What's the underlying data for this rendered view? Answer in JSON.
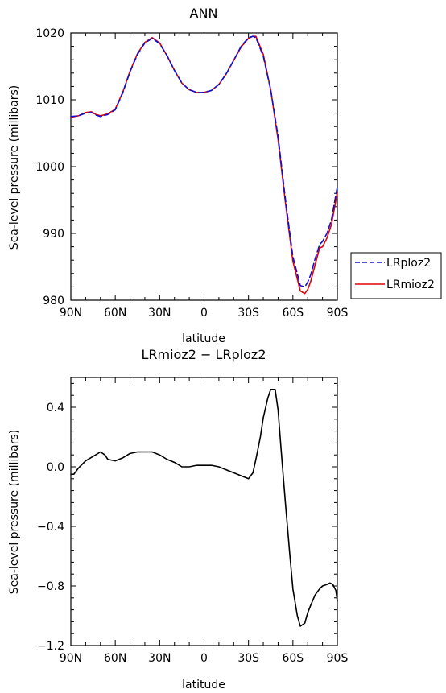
{
  "chart_data": [
    {
      "type": "line",
      "title": "ANN",
      "xlabel": "latitude",
      "ylabel": "Sea-level pressure (millibars)",
      "x_tick_labels": [
        "90N",
        "60N",
        "30N",
        "0",
        "30S",
        "60S",
        "90S"
      ],
      "x_tick_values": [
        90,
        60,
        30,
        0,
        -30,
        -60,
        -90
      ],
      "xlim": [
        90,
        -90
      ],
      "ylim": [
        980,
        1020
      ],
      "y_ticks": [
        980,
        990,
        1000,
        1010,
        1020
      ],
      "legend_placement": "outside-right",
      "x": [
        90,
        85,
        80,
        76,
        73,
        70,
        65,
        60,
        55,
        50,
        45,
        40,
        35,
        30,
        25,
        20,
        15,
        10,
        5,
        0,
        -5,
        -10,
        -15,
        -20,
        -25,
        -30,
        -33,
        -35,
        -40,
        -45,
        -50,
        -55,
        -60,
        -65,
        -68,
        -70,
        -72,
        -75,
        -78,
        -80,
        -83,
        -86,
        -90
      ],
      "series": [
        {
          "name": "LRploz2",
          "color": "#1010d0",
          "dash": "dashed",
          "values": [
            1007.5,
            1007.6,
            1008.0,
            1008.1,
            1007.7,
            1007.5,
            1007.8,
            1008.5,
            1011.0,
            1014.2,
            1016.8,
            1018.5,
            1019.2,
            1018.4,
            1016.6,
            1014.4,
            1012.5,
            1011.5,
            1011.1,
            1011.1,
            1011.4,
            1012.3,
            1013.9,
            1015.9,
            1018.0,
            1019.3,
            1019.5,
            1019.3,
            1016.5,
            1011.5,
            1004.5,
            995.0,
            986.5,
            982.2,
            982.0,
            982.7,
            983.8,
            986.2,
            988.3,
            988.8,
            990.0,
            992.0,
            997.0
          ]
        },
        {
          "name": "LRmioz2",
          "color": "#e00000",
          "dash": "solid",
          "values": [
            1007.4,
            1007.6,
            1008.1,
            1008.2,
            1007.8,
            1007.6,
            1007.9,
            1008.6,
            1011.1,
            1014.3,
            1016.9,
            1018.6,
            1019.3,
            1018.5,
            1016.6,
            1014.4,
            1012.5,
            1011.5,
            1011.1,
            1011.1,
            1011.4,
            1012.3,
            1013.9,
            1015.9,
            1017.9,
            1019.2,
            1019.5,
            1019.5,
            1016.8,
            1011.5,
            1004.0,
            994.5,
            985.8,
            981.4,
            981.0,
            981.6,
            982.8,
            985.3,
            987.8,
            988.0,
            989.3,
            991.3,
            996.1
          ]
        }
      ]
    },
    {
      "type": "line",
      "title": "LRmioz2 − LRploz2",
      "xlabel": "latitude",
      "ylabel": "Sea-level pressure (millibars)",
      "x_tick_labels": [
        "90N",
        "60N",
        "30N",
        "0",
        "30S",
        "60S",
        "90S"
      ],
      "x_tick_values": [
        90,
        60,
        30,
        0,
        -30,
        -60,
        -90
      ],
      "xlim": [
        90,
        -90
      ],
      "ylim": [
        -1.2,
        0.6
      ],
      "y_ticks": [
        -1.2,
        -0.8,
        -0.4,
        0.0,
        0.4
      ],
      "y_tick_labels": [
        "−1.2",
        "−0.8",
        "−0.4",
        "0.0",
        "0.4"
      ],
      "x": [
        90,
        88,
        85,
        80,
        75,
        70,
        67,
        65,
        60,
        55,
        50,
        45,
        40,
        35,
        30,
        25,
        20,
        15,
        10,
        5,
        0,
        -5,
        -10,
        -15,
        -20,
        -25,
        -30,
        -33,
        -35,
        -38,
        -40,
        -43,
        -45,
        -48,
        -50,
        -52,
        -55,
        -58,
        -60,
        -63,
        -65,
        -68,
        -70,
        -72,
        -75,
        -78,
        -80,
        -83,
        -85,
        -87,
        -89,
        -90
      ],
      "series": [
        {
          "name": "",
          "color": "#000000",
          "dash": "solid",
          "values": [
            -0.05,
            -0.05,
            -0.01,
            0.04,
            0.07,
            0.1,
            0.08,
            0.05,
            0.04,
            0.06,
            0.09,
            0.1,
            0.1,
            0.1,
            0.08,
            0.05,
            0.03,
            0.0,
            0.0,
            0.01,
            0.01,
            0.01,
            0.0,
            -0.02,
            -0.04,
            -0.06,
            -0.08,
            -0.04,
            0.05,
            0.2,
            0.33,
            0.46,
            0.52,
            0.52,
            0.38,
            0.12,
            -0.25,
            -0.6,
            -0.82,
            -1.0,
            -1.07,
            -1.05,
            -0.98,
            -0.93,
            -0.86,
            -0.82,
            -0.8,
            -0.79,
            -0.78,
            -0.79,
            -0.83,
            -0.9
          ]
        }
      ]
    }
  ],
  "legend": {
    "items": [
      {
        "label": "LRploz2",
        "color": "#1010d0",
        "dash": "dashed"
      },
      {
        "label": "LRmioz2",
        "color": "#e00000",
        "dash": "solid"
      }
    ]
  }
}
